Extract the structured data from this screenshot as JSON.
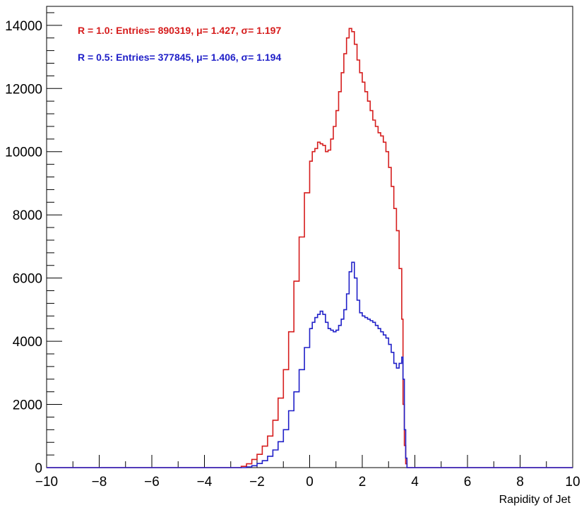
{
  "chart_data": {
    "type": "line",
    "title": "",
    "xlabel": "Rapidity of Jet",
    "ylabel": "",
    "xlim": [
      -10,
      10
    ],
    "ylim": [
      0,
      14600
    ],
    "grid": false,
    "legend_position": "top-left",
    "x_ticks": [
      -10,
      -8,
      -6,
      -4,
      -2,
      0,
      2,
      4,
      6,
      8,
      10
    ],
    "x_tick_labels": [
      "−10",
      "−8",
      "−6",
      "−4",
      "−2",
      "0",
      "2",
      "4",
      "6",
      "8",
      "10"
    ],
    "y_ticks": [
      0,
      2000,
      4000,
      6000,
      8000,
      10000,
      12000,
      14000
    ],
    "y_tick_labels": [
      "0",
      "2000",
      "4000",
      "6000",
      "8000",
      "10000",
      "12000",
      "14000"
    ],
    "series": [
      {
        "name": "R = 1.0",
        "label": "R = 1.0:  Entries= 890319, μ= 1.427, σ= 1.197",
        "color": "#d61d1d",
        "x": [
          -10,
          -3.0,
          -2.6,
          -2.4,
          -2.2,
          -2.0,
          -1.8,
          -1.6,
          -1.4,
          -1.2,
          -1.0,
          -0.8,
          -0.6,
          -0.4,
          -0.2,
          0.0,
          0.1,
          0.2,
          0.3,
          0.4,
          0.5,
          0.6,
          0.7,
          0.8,
          0.9,
          1.0,
          1.1,
          1.2,
          1.3,
          1.4,
          1.5,
          1.6,
          1.7,
          1.8,
          1.9,
          2.0,
          2.1,
          2.2,
          2.3,
          2.4,
          2.5,
          2.6,
          2.7,
          2.8,
          2.9,
          3.0,
          3.1,
          3.2,
          3.3,
          3.4,
          3.5,
          3.55,
          3.6,
          3.65,
          3.7,
          10
        ],
        "y": [
          0,
          0,
          40,
          120,
          260,
          420,
          680,
          1000,
          1500,
          2200,
          3100,
          4300,
          5900,
          7300,
          8700,
          9700,
          10000,
          10100,
          10300,
          10250,
          10200,
          10000,
          10050,
          10400,
          10800,
          11300,
          11900,
          12500,
          13100,
          13600,
          13900,
          13800,
          13400,
          12900,
          12500,
          12200,
          11900,
          11600,
          11300,
          11000,
          10800,
          10600,
          10500,
          10300,
          10000,
          9500,
          8900,
          8200,
          7500,
          6300,
          4700,
          2000,
          700,
          120,
          0,
          0
        ]
      },
      {
        "name": "R = 0.5",
        "label": "R = 0.5:  Entries= 377845, μ= 1.406, σ= 1.194",
        "color": "#2020c8",
        "x": [
          -10,
          -3.0,
          -2.4,
          -2.2,
          -2.0,
          -1.8,
          -1.6,
          -1.4,
          -1.2,
          -1.0,
          -0.8,
          -0.6,
          -0.4,
          -0.2,
          0.0,
          0.1,
          0.2,
          0.3,
          0.4,
          0.5,
          0.6,
          0.7,
          0.8,
          0.9,
          1.0,
          1.1,
          1.2,
          1.3,
          1.4,
          1.5,
          1.6,
          1.7,
          1.8,
          1.9,
          2.0,
          2.1,
          2.2,
          2.3,
          2.4,
          2.5,
          2.6,
          2.7,
          2.8,
          2.9,
          3.0,
          3.1,
          3.2,
          3.3,
          3.4,
          3.5,
          3.55,
          3.6,
          3.65,
          3.7,
          10
        ],
        "y": [
          0,
          0,
          20,
          60,
          130,
          220,
          360,
          560,
          820,
          1200,
          1800,
          2400,
          3100,
          3800,
          4400,
          4600,
          4750,
          4850,
          4950,
          4850,
          4600,
          4400,
          4350,
          4300,
          4350,
          4500,
          4700,
          5000,
          5500,
          6200,
          6500,
          6000,
          5300,
          4900,
          4800,
          4750,
          4700,
          4650,
          4600,
          4500,
          4400,
          4300,
          4200,
          4100,
          3900,
          3650,
          3300,
          3150,
          3300,
          3500,
          2800,
          1200,
          300,
          0,
          0
        ]
      }
    ]
  }
}
